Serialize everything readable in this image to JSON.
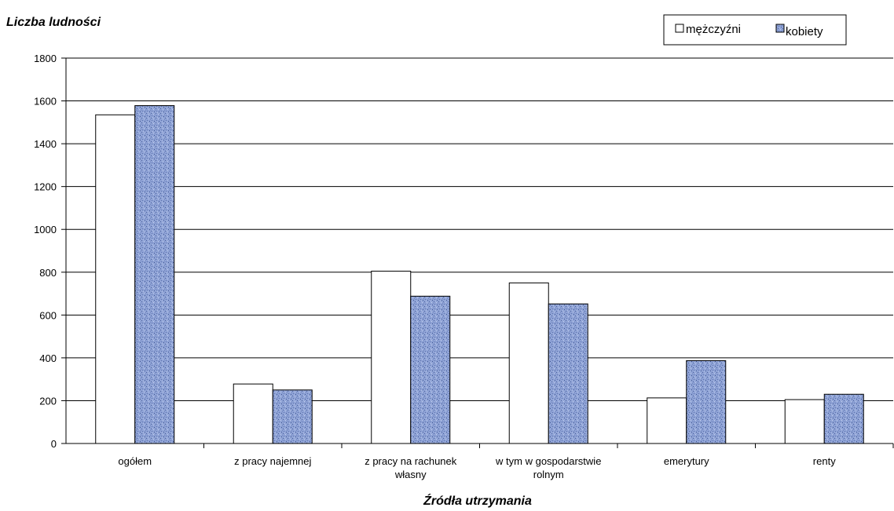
{
  "chart_data": {
    "type": "bar",
    "ylabel": "Liczba ludności",
    "xlabel": "Źródła utrzymania",
    "ylim": [
      0,
      1800
    ],
    "yticks": [
      0,
      200,
      400,
      600,
      800,
      1000,
      1200,
      1400,
      1600,
      1800
    ],
    "grid": true,
    "legend_position": "top-right",
    "categories": [
      [
        "ogółem"
      ],
      [
        "z pracy najemnej"
      ],
      [
        "z pracy na rachunek",
        "własny"
      ],
      [
        "w tym w gospodarstwie",
        "rolnym"
      ],
      [
        "emerytury"
      ],
      [
        "renty"
      ]
    ],
    "series": [
      {
        "name": "mężczyźni",
        "values": [
          1535,
          278,
          805,
          750,
          213,
          205
        ],
        "color": "#ffffff",
        "pattern": "none"
      },
      {
        "name": "kobiety",
        "values": [
          1578,
          250,
          688,
          652,
          387,
          230
        ],
        "color": "#8fa3d6",
        "pattern": "textured-blue"
      }
    ]
  }
}
